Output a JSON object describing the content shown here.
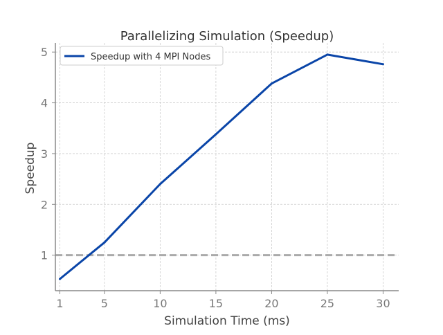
{
  "chart_data": {
    "type": "line",
    "title": "Parallelizing Simulation (Speedup)",
    "xlabel": "Simulation Time (ms)",
    "ylabel": "Speedup",
    "xlim": [
      0.6,
      31.4
    ],
    "ylim": [
      0.3,
      5.18
    ],
    "x_ticks": [
      1,
      5,
      10,
      15,
      20,
      25,
      30
    ],
    "y_ticks": [
      1,
      2,
      3,
      4,
      5
    ],
    "grid": true,
    "legend_position": "upper-left",
    "series": [
      {
        "name": "Speedup with 4 MPI Nodes",
        "color": "#0a45a8",
        "x": [
          1,
          5,
          10,
          15,
          20,
          25,
          30
        ],
        "y": [
          0.53,
          1.25,
          2.4,
          3.38,
          4.38,
          4.95,
          4.76
        ]
      }
    ],
    "reference_line": {
      "y": 1.0,
      "style": "dashed",
      "color": "#aaaaaa"
    },
    "colors": {
      "axis": "#888888",
      "grid": "#cccccc",
      "text": "#444444",
      "tick_text": "#777777"
    }
  }
}
